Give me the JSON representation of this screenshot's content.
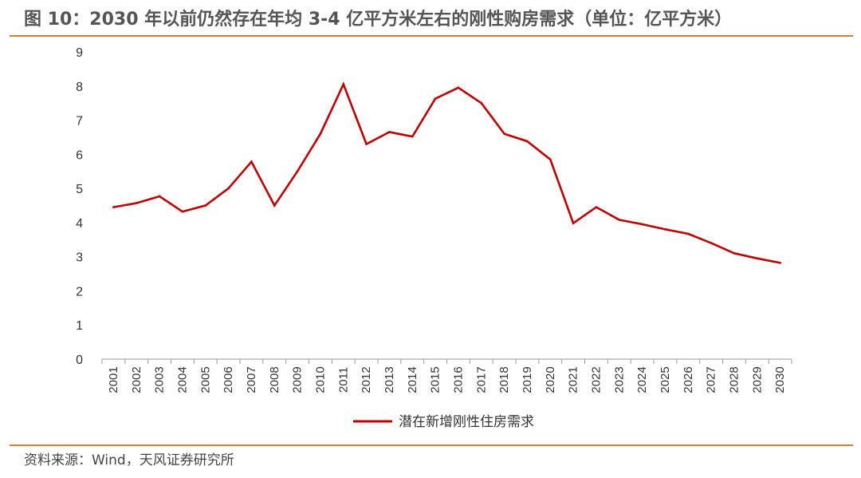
{
  "header": {
    "title": "图 10：2030 年以前仍然存在年均 3-4 亿平方米左右的刚性购房需求（单位：亿平方米）"
  },
  "footer": {
    "source": "资料来源：Wind，天风证券研究所"
  },
  "colors": {
    "accent_rule": "#e07a2f",
    "series_line": "#c00000",
    "axis": "#999999"
  },
  "chart_data": {
    "type": "line",
    "title": "",
    "xlabel": "",
    "ylabel": "",
    "ylim": [
      0,
      9
    ],
    "yticks": [
      0,
      1,
      2,
      3,
      4,
      5,
      6,
      7,
      8,
      9
    ],
    "grid": false,
    "legend_position": "bottom-center",
    "x": [
      "2001",
      "2002",
      "2003",
      "2004",
      "2005",
      "2006",
      "2007",
      "2008",
      "2009",
      "2010",
      "2011",
      "2012",
      "2013",
      "2014",
      "2015",
      "2016",
      "2017",
      "2018",
      "2019",
      "2020",
      "2021",
      "2022",
      "2023",
      "2024",
      "2025",
      "2026",
      "2027",
      "2028",
      "2029",
      "2030"
    ],
    "series": [
      {
        "name": "潜在新增刚性住房需求",
        "color": "#c00000",
        "values": [
          4.45,
          4.57,
          4.77,
          4.32,
          4.5,
          5.0,
          5.78,
          4.5,
          5.5,
          6.6,
          8.05,
          6.3,
          6.65,
          6.52,
          7.63,
          7.95,
          7.5,
          6.6,
          6.38,
          5.85,
          3.98,
          4.45,
          4.08,
          3.95,
          3.8,
          3.67,
          3.4,
          3.1,
          2.95,
          2.82
        ]
      }
    ]
  }
}
